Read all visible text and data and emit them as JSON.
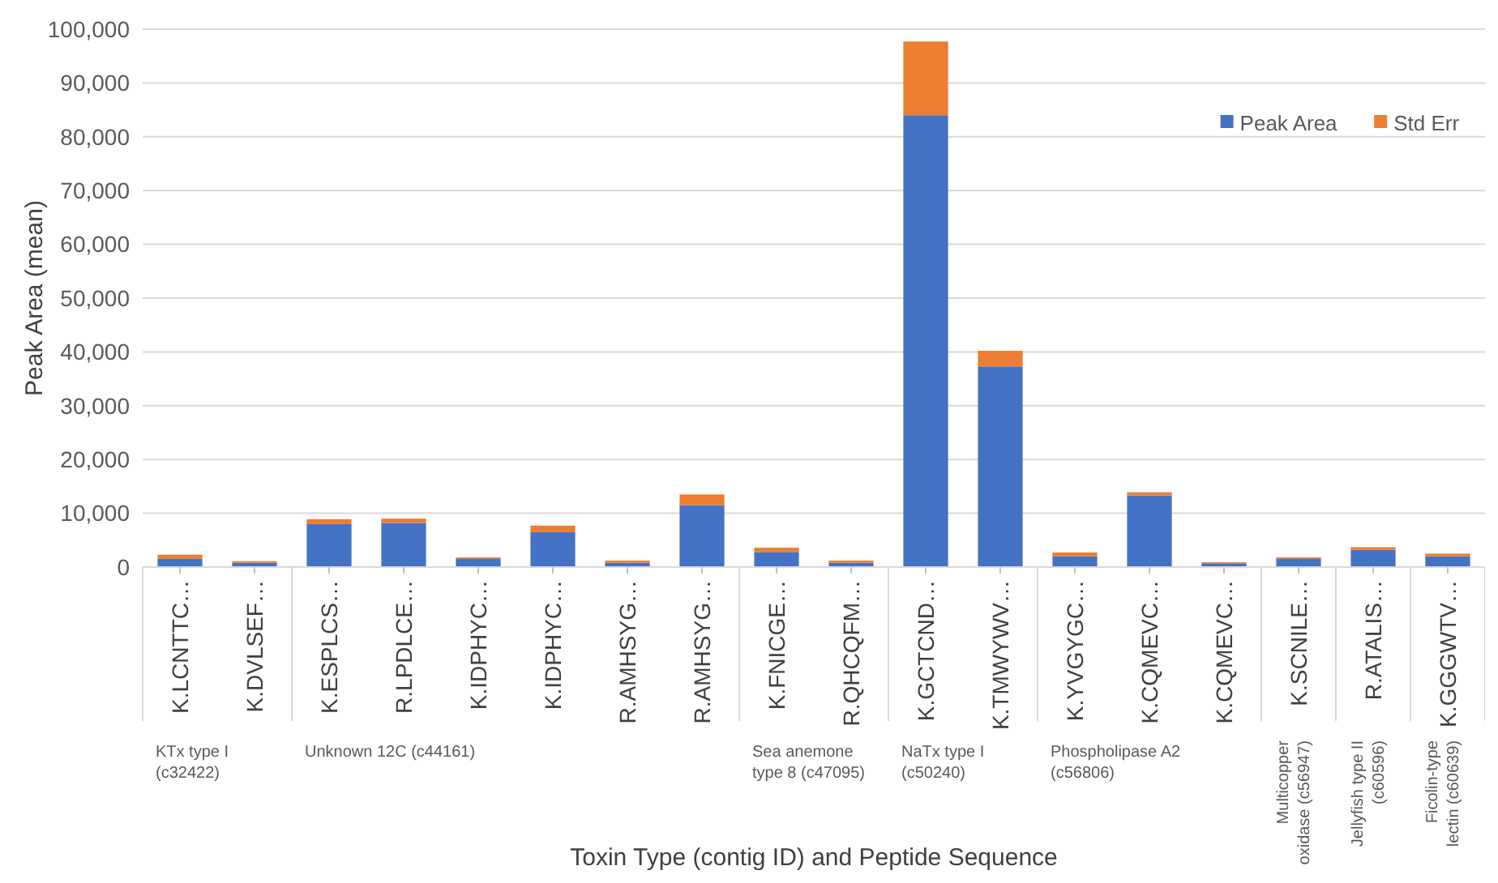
{
  "chart_data": {
    "type": "bar",
    "stacked": true,
    "xlabel": "Toxin Type (contig ID) and Peptide Sequence",
    "ylabel": "Peak Area (mean)",
    "categories": [
      "K.LCNTTC…",
      "K.DVLSEF…",
      "K.ESPLCS…",
      "R.LPDLCE…",
      "K.IDPHYC…",
      "K.IDPHYC…",
      "R.AMHSYG…",
      "R.AMHSYG…",
      "K.FNICGE…",
      "R.QHCQFM…",
      "K.GCTCND…",
      "K.TMWYWV…",
      "K.YVGYGC…",
      "K.CQMEVC…",
      "K.CQMEVC…",
      "K.SCNILE…",
      "R.ATALIS…",
      "K.GGGWTV…"
    ],
    "series": [
      {
        "name": "Peak Area",
        "color": "#4472c4",
        "values": [
          1500,
          800,
          8000,
          8200,
          1500,
          6500,
          800,
          11500,
          2800,
          800,
          84000,
          37300,
          2000,
          13300,
          700,
          1500,
          3200,
          2000
        ]
      },
      {
        "name": "Std Err",
        "color": "#ed7d31",
        "values": [
          800,
          300,
          900,
          800,
          300,
          1200,
          400,
          2000,
          800,
          400,
          13700,
          2900,
          700,
          600,
          200,
          300,
          500,
          500
        ]
      }
    ],
    "ylim": [
      0,
      100000
    ],
    "yticks": [
      {
        "value": 0,
        "label": "0"
      },
      {
        "value": 10000,
        "label": "10,000"
      },
      {
        "value": 20000,
        "label": "20,000"
      },
      {
        "value": 30000,
        "label": "30,000"
      },
      {
        "value": 40000,
        "label": "40,000"
      },
      {
        "value": 50000,
        "label": "50,000"
      },
      {
        "value": 60000,
        "label": "60,000"
      },
      {
        "value": 70000,
        "label": "70,000"
      },
      {
        "value": 80000,
        "label": "80,000"
      },
      {
        "value": 90000,
        "label": "90,000"
      },
      {
        "value": 100000,
        "label": "100,000"
      }
    ],
    "grid": "y",
    "legend": "top right",
    "annotations": [
      "KTx type I (c32422)",
      "Unknown 12C (c44161)",
      "Sea anemone type 8 (c47095)",
      "NaTx type I (c50240)",
      "Phospholipase A2 (c56806)",
      "Multicopper oxidase (c56947)",
      "Jellyfish type II (c60596)",
      "Ficolin-type lectin (c60639)"
    ]
  }
}
